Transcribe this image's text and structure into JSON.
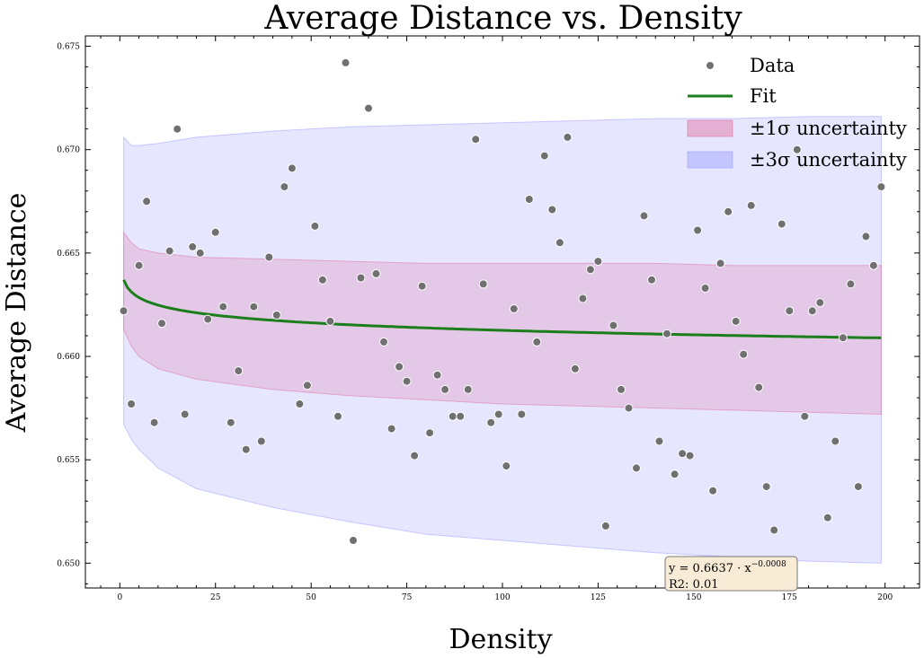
{
  "chart_data": {
    "type": "scatter",
    "title": "Average Distance vs. Density",
    "xlabel": "Density",
    "ylabel": "Average Distance",
    "xlim": [
      -9,
      209
    ],
    "ylim": [
      0.6488,
      0.6755
    ],
    "xticks": [
      0,
      25,
      50,
      75,
      100,
      125,
      150,
      175,
      200
    ],
    "yticks": [
      0.65,
      0.655,
      0.66,
      0.665,
      0.67,
      0.675
    ],
    "ytick_labels": [
      "0.650",
      "0.655",
      "0.660",
      "0.665",
      "0.670",
      "0.675"
    ],
    "grid": false,
    "legend_position": "top-right",
    "colors": {
      "data": "#707070",
      "fit": "#1a7f1a",
      "band1": "#e06fa0",
      "band3": "#9c9cff"
    },
    "series": [
      {
        "name": "Data",
        "kind": "scatter",
        "x": [
          1,
          3,
          5,
          7,
          9,
          11,
          13,
          15,
          17,
          19,
          21,
          23,
          25,
          27,
          29,
          31,
          33,
          35,
          37,
          39,
          41,
          43,
          45,
          47,
          49,
          51,
          53,
          55,
          57,
          59,
          61,
          63,
          65,
          67,
          69,
          71,
          73,
          75,
          77,
          79,
          81,
          83,
          85,
          87,
          89,
          91,
          93,
          95,
          97,
          99,
          101,
          103,
          105,
          107,
          109,
          111,
          113,
          115,
          117,
          119,
          121,
          123,
          125,
          127,
          129,
          131,
          133,
          135,
          137,
          139,
          141,
          143,
          145,
          147,
          149,
          151,
          153,
          155,
          157,
          159,
          161,
          163,
          165,
          167,
          169,
          171,
          173,
          175,
          177,
          179,
          181,
          183,
          185,
          187,
          189,
          191,
          193,
          195,
          197,
          199
        ],
        "y": [
          0.6622,
          0.6577,
          0.6644,
          0.6675,
          0.6568,
          0.6616,
          0.6651,
          0.671,
          0.6572,
          0.6653,
          0.665,
          0.6618,
          0.666,
          0.6624,
          0.6568,
          0.6593,
          0.6555,
          0.6624,
          0.6559,
          0.6648,
          0.662,
          0.6682,
          0.6691,
          0.6577,
          0.6586,
          0.6663,
          0.6637,
          0.6617,
          0.6571,
          0.6742,
          0.6511,
          0.6638,
          0.672,
          0.664,
          0.6607,
          0.6565,
          0.6595,
          0.6588,
          0.6552,
          0.6634,
          0.6563,
          0.6591,
          0.6584,
          0.6571,
          0.6571,
          0.6584,
          0.6705,
          0.6635,
          0.6568,
          0.6572,
          0.6547,
          0.6623,
          0.6572,
          0.6676,
          0.6607,
          0.6697,
          0.6671,
          0.6655,
          0.6706,
          0.6594,
          0.6628,
          0.6642,
          0.6646,
          0.6518,
          0.6615,
          0.6584,
          0.6575,
          0.6546,
          0.6668,
          0.6637,
          0.6559,
          0.6611,
          0.6543,
          0.6553,
          0.6552,
          0.6661,
          0.6633,
          0.6535,
          0.6645,
          0.667,
          0.6617,
          0.6601,
          0.6673,
          0.6585,
          0.6537,
          0.6516,
          0.6664,
          0.6622,
          0.67,
          0.6571,
          0.6622,
          0.6626,
          0.6522,
          0.6559,
          0.6609,
          0.6635,
          0.6537,
          0.6658,
          0.6644,
          0.6682
        ]
      },
      {
        "name": "Fit",
        "kind": "line",
        "formula": "y = 0.6637 * x^-0.0008"
      },
      {
        "name": "±1σ uncertainty",
        "kind": "band",
        "x": [
          1,
          3,
          5,
          10,
          20,
          40,
          60,
          80,
          100,
          120,
          140,
          160,
          180,
          199
        ],
        "lower": [
          0.6613,
          0.6605,
          0.66,
          0.6594,
          0.6589,
          0.6584,
          0.6581,
          0.6579,
          0.6577,
          0.6576,
          0.6575,
          0.6574,
          0.6573,
          0.6572
        ],
        "upper": [
          0.666,
          0.6655,
          0.6652,
          0.665,
          0.6648,
          0.6647,
          0.6646,
          0.6645,
          0.6645,
          0.6645,
          0.6645,
          0.6644,
          0.6644,
          0.6644
        ]
      },
      {
        "name": "±3σ uncertainty",
        "kind": "band",
        "x": [
          1,
          3,
          5,
          10,
          20,
          40,
          60,
          80,
          100,
          120,
          140,
          160,
          180,
          199
        ],
        "lower": [
          0.6567,
          0.656,
          0.6555,
          0.6546,
          0.6536,
          0.6527,
          0.652,
          0.6514,
          0.6511,
          0.6508,
          0.6505,
          0.6503,
          0.6501,
          0.65
        ],
        "upper": [
          0.6706,
          0.6702,
          0.6702,
          0.6703,
          0.6706,
          0.6709,
          0.6711,
          0.6712,
          0.6713,
          0.6714,
          0.6715,
          0.6715,
          0.6716,
          0.6716
        ]
      }
    ],
    "annotation": {
      "line1_prefix": "y = 0.6637 · x",
      "line1_exponent": "−0.0008",
      "line2": "R2: 0.01"
    }
  }
}
